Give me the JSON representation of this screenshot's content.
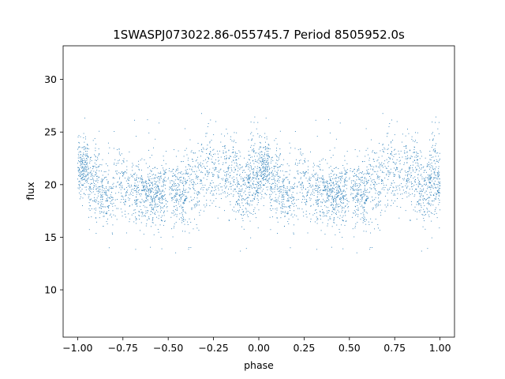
{
  "chart_data": {
    "type": "scatter",
    "title": "1SWASPJ073022.86-055745.7 Period 8505952.0s",
    "xlabel": "phase",
    "ylabel": "flux",
    "xlim": [
      -1.08,
      1.08
    ],
    "ylim": [
      5.5,
      33.2
    ],
    "x_ticks": [
      -1.0,
      -0.75,
      -0.5,
      -0.25,
      0.0,
      0.25,
      0.5,
      0.75,
      1.0
    ],
    "x_tick_labels": [
      "−1.00",
      "−0.75",
      "−0.50",
      "−0.25",
      "0.00",
      "0.25",
      "0.50",
      "0.75",
      "1.00"
    ],
    "y_ticks": [
      10,
      15,
      20,
      25,
      30
    ],
    "y_tick_labels": [
      "10",
      "15",
      "20",
      "25",
      "30"
    ],
    "grid": false,
    "legend": "none",
    "marker_color": "#1f77b4",
    "series": [
      {
        "sampling": "phase-folded light curve, mirrored about phase 0 (x and x−1 share the same flux)",
        "segments": [
          {
            "phase_start": 0.0,
            "phase_end": 0.06,
            "center": 21.5,
            "spread": 2.0,
            "density": 1.6
          },
          {
            "phase_start": 0.06,
            "phase_end": 0.12,
            "center": 20.0,
            "spread": 2.2,
            "density": 1.1
          },
          {
            "phase_start": 0.12,
            "phase_end": 0.2,
            "center": 19.0,
            "spread": 2.0,
            "density": 0.9
          },
          {
            "phase_start": 0.2,
            "phase_end": 0.26,
            "center": 20.2,
            "spread": 2.3,
            "density": 0.6
          },
          {
            "phase_start": 0.26,
            "phase_end": 0.32,
            "center": 19.5,
            "spread": 2.0,
            "density": 0.7
          },
          {
            "phase_start": 0.32,
            "phase_end": 0.4,
            "center": 19.2,
            "spread": 2.0,
            "density": 1.1
          },
          {
            "phase_start": 0.4,
            "phase_end": 0.48,
            "center": 19.0,
            "spread": 1.8,
            "density": 1.4
          },
          {
            "phase_start": 0.48,
            "phase_end": 0.52,
            "center": 19.5,
            "spread": 2.2,
            "density": 0.5
          },
          {
            "phase_start": 0.52,
            "phase_end": 0.6,
            "center": 19.3,
            "spread": 1.9,
            "density": 1.2
          },
          {
            "phase_start": 0.6,
            "phase_end": 0.68,
            "center": 20.0,
            "spread": 2.4,
            "density": 0.8
          },
          {
            "phase_start": 0.68,
            "phase_end": 0.76,
            "center": 21.2,
            "spread": 2.3,
            "density": 0.7
          },
          {
            "phase_start": 0.76,
            "phase_end": 0.8,
            "center": 20.5,
            "spread": 2.4,
            "density": 0.5
          },
          {
            "phase_start": 0.8,
            "phase_end": 0.88,
            "center": 21.3,
            "spread": 2.2,
            "density": 0.9
          },
          {
            "phase_start": 0.88,
            "phase_end": 0.94,
            "center": 19.6,
            "spread": 2.2,
            "density": 1.0
          },
          {
            "phase_start": 0.94,
            "phase_end": 1.0,
            "center": 20.5,
            "spread": 2.2,
            "density": 1.5
          }
        ],
        "outlier_range": [
          7.0,
          32.5
        ]
      }
    ]
  }
}
